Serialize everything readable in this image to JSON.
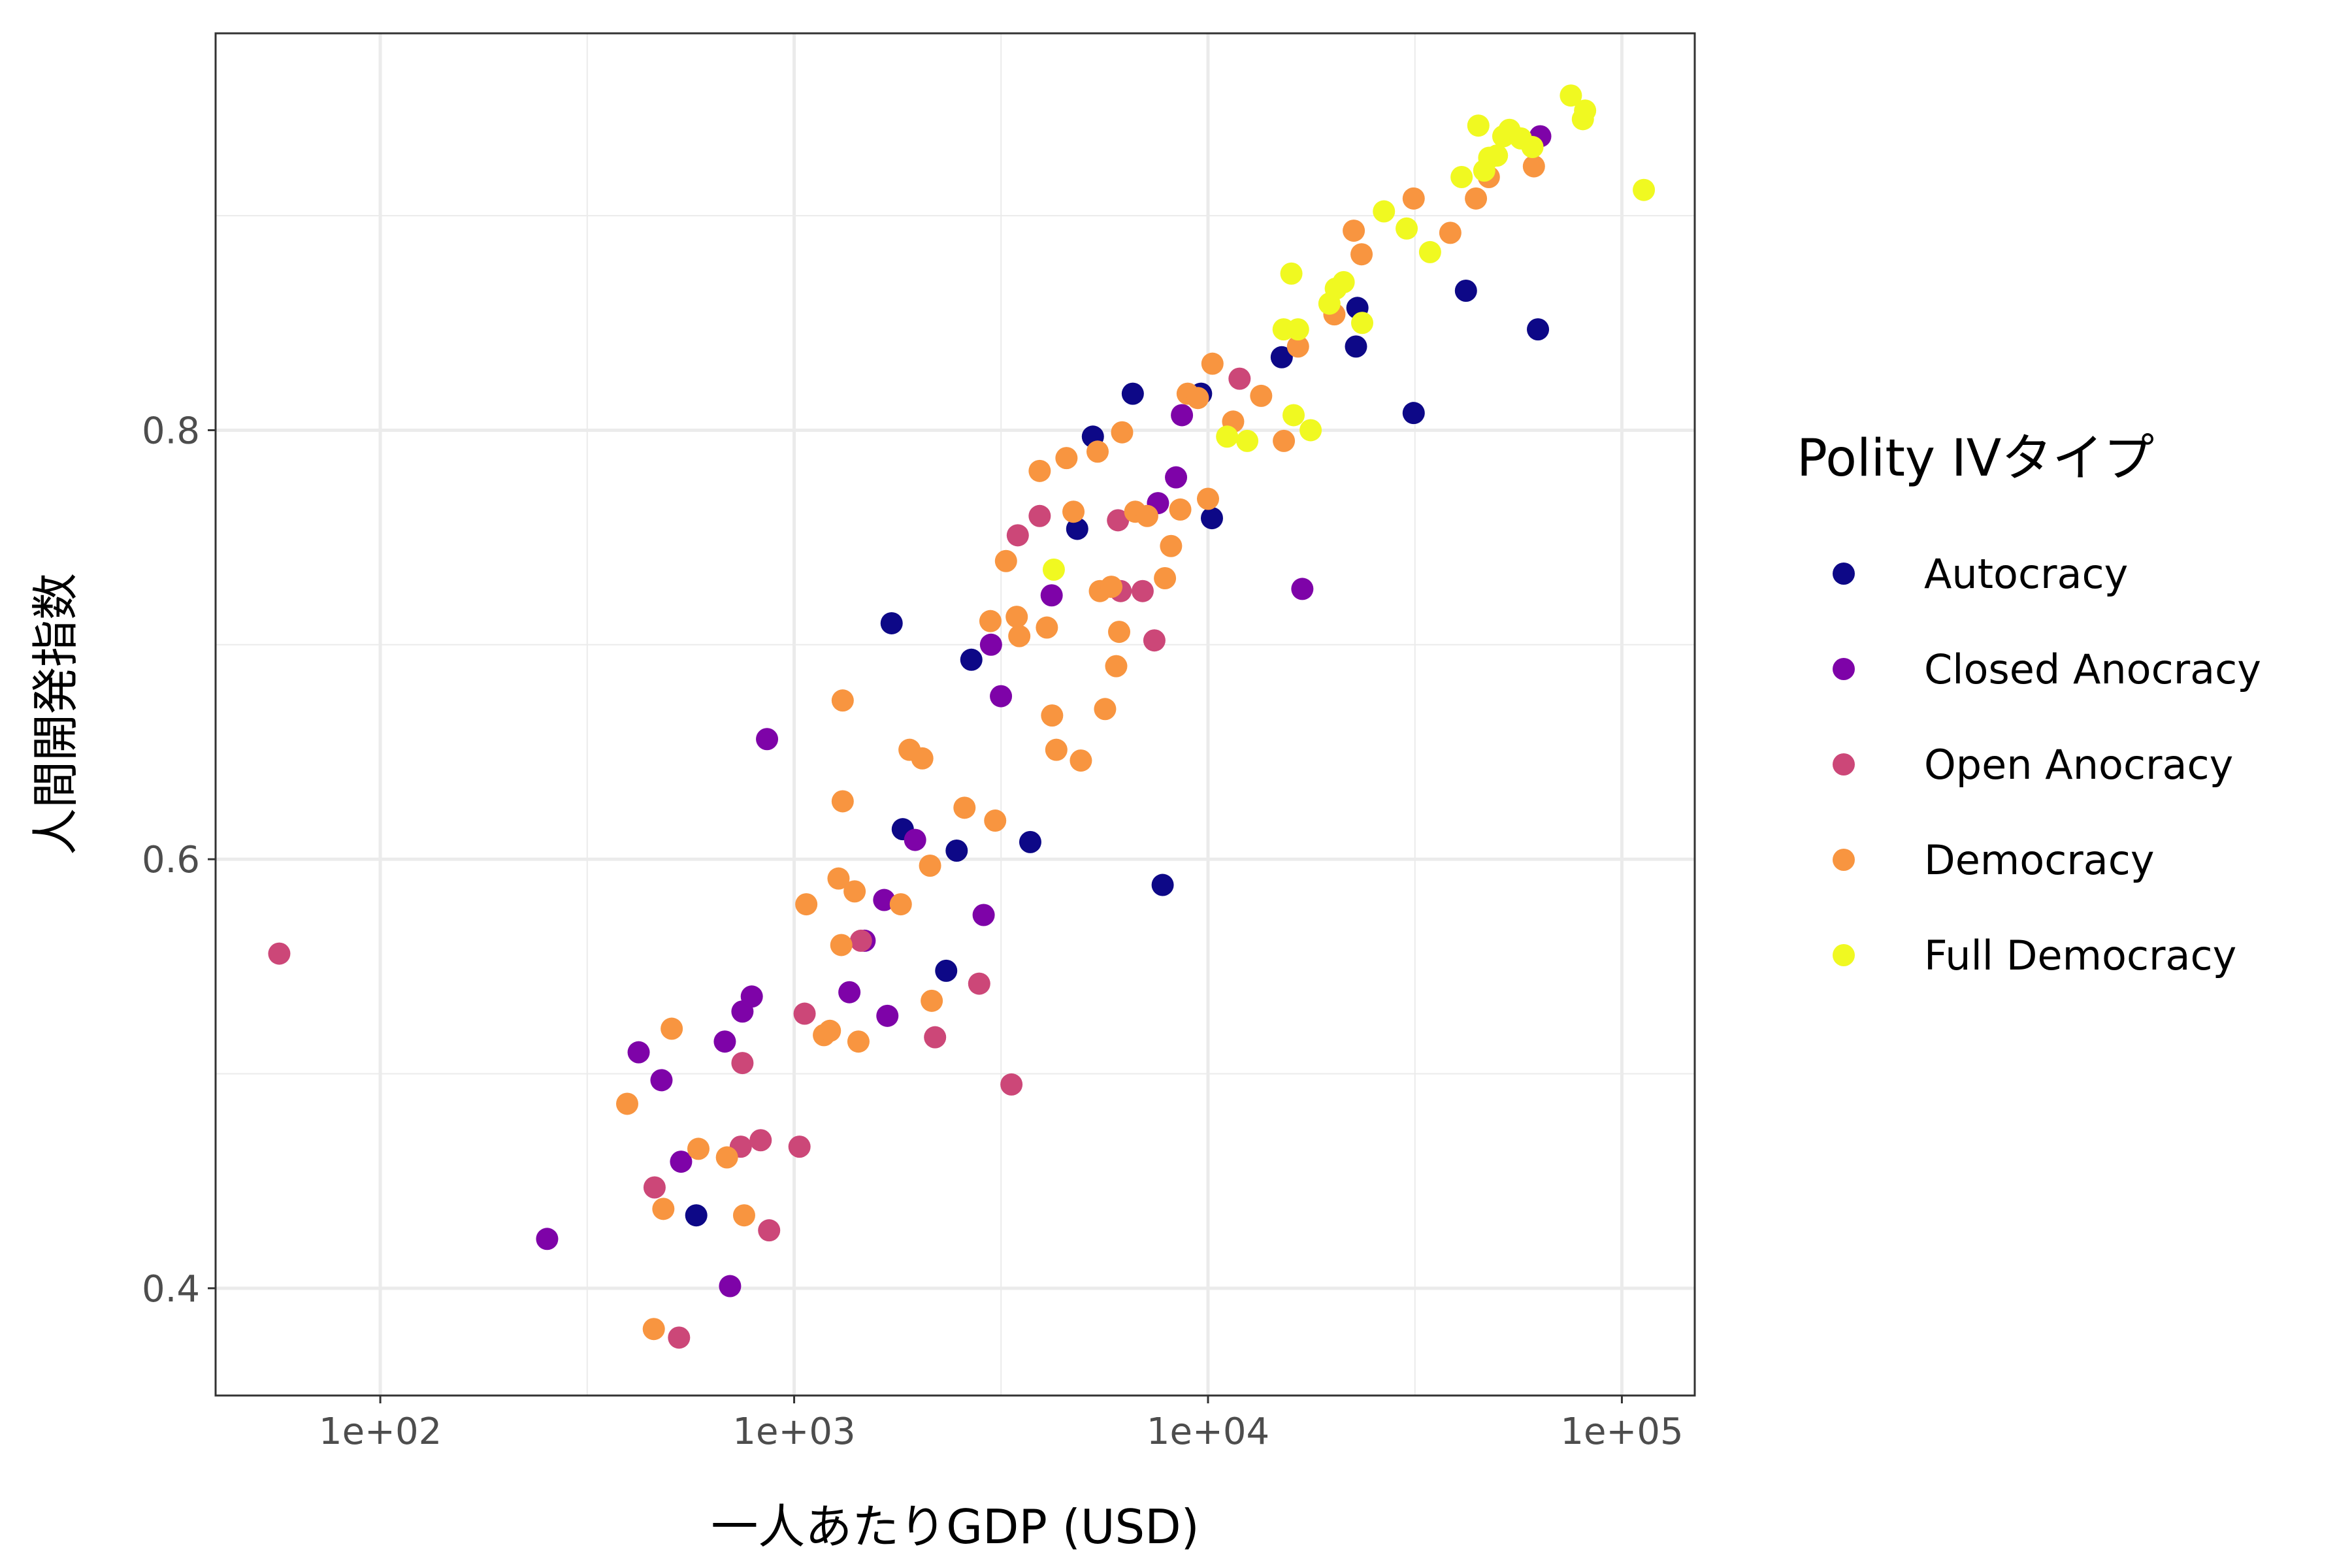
{
  "chart_data": {
    "type": "scatter",
    "xlabel": "一人あたりGDP (USD)",
    "ylabel": "人間開発指数",
    "x_scale": "log10",
    "xlim": [
      40,
      150000
    ],
    "ylim": [
      0.35,
      0.985
    ],
    "x_ticks": [
      {
        "value": 100,
        "label": "1e+02"
      },
      {
        "value": 1000,
        "label": "1e+03"
      },
      {
        "value": 10000,
        "label": "1e+04"
      },
      {
        "value": 100000,
        "label": "1e+05"
      }
    ],
    "y_ticks": [
      {
        "value": 0.4,
        "label": "0.4"
      },
      {
        "value": 0.6,
        "label": "0.6"
      },
      {
        "value": 0.8,
        "label": "0.8"
      }
    ],
    "grid": true,
    "legend": {
      "title": "Polity IVタイプ",
      "position": "right"
    },
    "series": [
      {
        "name": "Autocracy",
        "color": "#0d0887",
        "points": [
          [
            580,
            0.434
          ],
          [
            1720,
            0.71
          ],
          [
            1830,
            0.614
          ],
          [
            2330,
            0.548
          ],
          [
            2470,
            0.604
          ],
          [
            2680,
            0.693
          ],
          [
            3720,
            0.608
          ],
          [
            4830,
            0.754
          ],
          [
            5270,
            0.797
          ],
          [
            6580,
            0.817
          ],
          [
            7770,
            0.588
          ],
          [
            9620,
            0.817
          ],
          [
            10220,
            0.759
          ],
          [
            15070,
            0.834
          ],
          [
            22780,
            0.839
          ],
          [
            22960,
            0.857
          ],
          [
            31400,
            0.808
          ],
          [
            42000,
            0.865
          ],
          [
            62700,
            0.847
          ]
        ]
      },
      {
        "name": "Closed Anocracy",
        "color": "#7e03a8",
        "points": [
          [
            253,
            0.423
          ],
          [
            421,
            0.51
          ],
          [
            478,
            0.497
          ],
          [
            533,
            0.459
          ],
          [
            680,
            0.515
          ],
          [
            700,
            0.401
          ],
          [
            750,
            0.529
          ],
          [
            790,
            0.536
          ],
          [
            860,
            0.656
          ],
          [
            1360,
            0.538
          ],
          [
            1480,
            0.562
          ],
          [
            1650,
            0.581
          ],
          [
            1680,
            0.527
          ],
          [
            1960,
            0.609
          ],
          [
            2870,
            0.574
          ],
          [
            2990,
            0.7
          ],
          [
            3160,
            0.676
          ],
          [
            4190,
            0.723
          ],
          [
            7570,
            0.766
          ],
          [
            8370,
            0.778
          ],
          [
            8650,
            0.807
          ],
          [
            16900,
            0.726
          ],
          [
            63500,
            0.937
          ]
        ]
      },
      {
        "name": "Open Anocracy",
        "color": "#cc4778",
        "points": [
          [
            57,
            0.556
          ],
          [
            460,
            0.447
          ],
          [
            527,
            0.377
          ],
          [
            743,
            0.466
          ],
          [
            750,
            0.505
          ],
          [
            830,
            0.469
          ],
          [
            870,
            0.427
          ],
          [
            1030,
            0.466
          ],
          [
            1060,
            0.528
          ],
          [
            1450,
            0.562
          ],
          [
            2190,
            0.517
          ],
          [
            2800,
            0.542
          ],
          [
            3350,
            0.495
          ],
          [
            3920,
            0.76
          ],
          [
            3470,
            0.751
          ],
          [
            6060,
            0.758
          ],
          [
            6150,
            0.725
          ],
          [
            6950,
            0.725
          ],
          [
            7420,
            0.702
          ],
          [
            11920,
            0.824
          ]
        ]
      },
      {
        "name": "Democracy",
        "color": "#f89540",
        "points": [
          [
            395,
            0.486
          ],
          [
            458,
            0.381
          ],
          [
            483,
            0.437
          ],
          [
            506,
            0.521
          ],
          [
            587,
            0.465
          ],
          [
            688,
            0.461
          ],
          [
            757,
            0.434
          ],
          [
            1070,
            0.579
          ],
          [
            1180,
            0.518
          ],
          [
            1220,
            0.52
          ],
          [
            1280,
            0.591
          ],
          [
            1300,
            0.56
          ],
          [
            1310,
            0.627
          ],
          [
            1310,
            0.674
          ],
          [
            1400,
            0.585
          ],
          [
            1430,
            0.515
          ],
          [
            1810,
            0.579
          ],
          [
            1900,
            0.651
          ],
          [
            2040,
            0.647
          ],
          [
            2130,
            0.597
          ],
          [
            2150,
            0.534
          ],
          [
            2580,
            0.624
          ],
          [
            2980,
            0.711
          ],
          [
            3060,
            0.618
          ],
          [
            3250,
            0.739
          ],
          [
            3450,
            0.713
          ],
          [
            3500,
            0.704
          ],
          [
            3920,
            0.781
          ],
          [
            4080,
            0.708
          ],
          [
            4200,
            0.667
          ],
          [
            4300,
            0.651
          ],
          [
            4550,
            0.787
          ],
          [
            4730,
            0.762
          ],
          [
            4930,
            0.646
          ],
          [
            5410,
            0.79
          ],
          [
            5480,
            0.725
          ],
          [
            5640,
            0.67
          ],
          [
            5840,
            0.727
          ],
          [
            6000,
            0.69
          ],
          [
            6100,
            0.706
          ],
          [
            6200,
            0.799
          ],
          [
            6670,
            0.762
          ],
          [
            7130,
            0.76
          ],
          [
            7870,
            0.731
          ],
          [
            8140,
            0.746
          ],
          [
            8570,
            0.763
          ],
          [
            8930,
            0.817
          ],
          [
            9450,
            0.815
          ],
          [
            10000,
            0.768
          ],
          [
            10250,
            0.831
          ],
          [
            11500,
            0.804
          ],
          [
            13440,
            0.816
          ],
          [
            15250,
            0.795
          ],
          [
            16500,
            0.839
          ],
          [
            20200,
            0.854
          ],
          [
            22500,
            0.893
          ],
          [
            23500,
            0.882
          ],
          [
            31400,
            0.908
          ],
          [
            38500,
            0.892
          ],
          [
            44400,
            0.908
          ],
          [
            47700,
            0.918
          ],
          [
            61300,
            0.923
          ]
        ]
      },
      {
        "name": "Full Democracy",
        "color": "#f0f921",
        "points": [
          [
            4240,
            0.735
          ],
          [
            11120,
            0.797
          ],
          [
            12440,
            0.795
          ],
          [
            15230,
            0.847
          ],
          [
            15900,
            0.873
          ],
          [
            16100,
            0.807
          ],
          [
            16500,
            0.847
          ],
          [
            17700,
            0.8
          ],
          [
            19650,
            0.859
          ],
          [
            20360,
            0.866
          ],
          [
            21270,
            0.869
          ],
          [
            23580,
            0.85
          ],
          [
            26610,
            0.902
          ],
          [
            30200,
            0.894
          ],
          [
            34400,
            0.883
          ],
          [
            41000,
            0.918
          ],
          [
            45000,
            0.942
          ],
          [
            46500,
            0.921
          ],
          [
            47800,
            0.927
          ],
          [
            49900,
            0.928
          ],
          [
            51700,
            0.937
          ],
          [
            53500,
            0.94
          ],
          [
            57000,
            0.936
          ],
          [
            60800,
            0.932
          ],
          [
            75300,
            0.956
          ],
          [
            80500,
            0.945
          ],
          [
            81500,
            0.949
          ],
          [
            113000,
            0.912
          ]
        ]
      }
    ]
  }
}
